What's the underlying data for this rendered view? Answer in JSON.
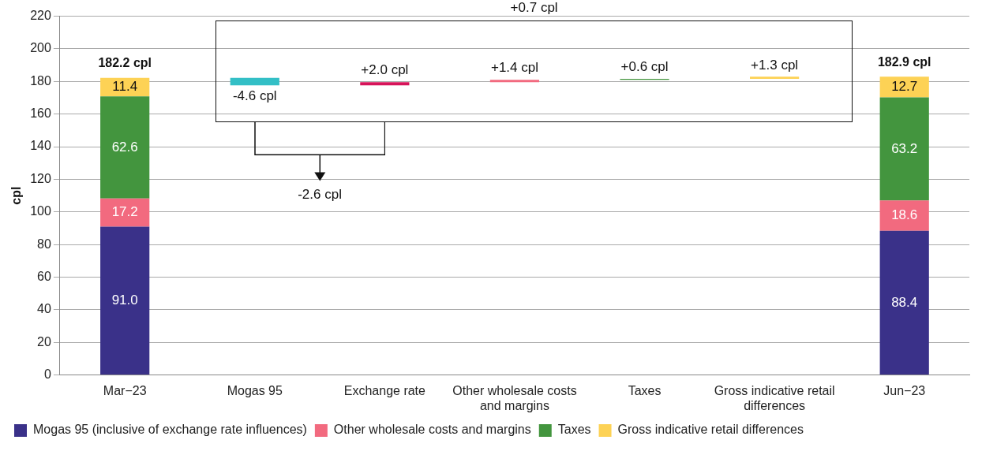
{
  "chart_data": {
    "type": "bar",
    "stacked": true,
    "ylabel": "cpl",
    "categories": [
      "Mar−23",
      "Mogas 95",
      "Exchange rate",
      "Other wholesale costs and margins",
      "Taxes",
      "Gross indicative retail differences",
      "Jun−23"
    ],
    "ylim": [
      0,
      220
    ],
    "yticks": [
      0,
      20,
      40,
      60,
      80,
      100,
      120,
      140,
      160,
      180,
      200,
      220
    ],
    "grid": "y",
    "legend": "bottom",
    "series": [
      {
        "name": "Mogas 95 (inclusive of exchange rate influences)",
        "color": "#3a3189",
        "values": [
          91.0,
          null,
          null,
          null,
          null,
          null,
          88.4
        ],
        "value_labels": [
          "91.0",
          null,
          null,
          null,
          null,
          null,
          "88.4"
        ]
      },
      {
        "name": "Other wholesale costs and margins",
        "color": "#f26a7f",
        "values": [
          17.2,
          null,
          null,
          null,
          null,
          null,
          18.6
        ],
        "value_labels": [
          "17.2",
          null,
          null,
          null,
          null,
          null,
          "18.6"
        ]
      },
      {
        "name": "Taxes",
        "color": "#43953e",
        "values": [
          62.6,
          null,
          null,
          null,
          null,
          null,
          63.2
        ],
        "value_labels": [
          "62.6",
          null,
          null,
          null,
          null,
          null,
          "63.2"
        ]
      },
      {
        "name": "Gross indicative retail differences",
        "color": "#fdd255",
        "values": [
          11.4,
          null,
          null,
          null,
          null,
          null,
          12.7
        ],
        "value_labels": [
          "11.4",
          null,
          null,
          null,
          null,
          null,
          "12.7"
        ]
      },
      {
        "type": "bar",
        "colors": [
          null,
          "#33bfc6",
          "#d6145a",
          "#f26a7f",
          "#43953e",
          "#fdd255",
          null
        ],
        "base": [
          null,
          182.2,
          177.6,
          179.6,
          181.0,
          181.6,
          null
        ],
        "values": [
          null,
          -4.6,
          2.0,
          1.4,
          0.6,
          1.3,
          null
        ],
        "value_labels": [
          null,
          "-4.6 cpl",
          "+2.0 cpl",
          "+1.4 cpl",
          "+0.6 cpl",
          "+1.3 cpl",
          null
        ]
      }
    ],
    "totals": [
      "182.2 cpl",
      null,
      null,
      null,
      null,
      null,
      "182.9 cpl"
    ],
    "annotations": [
      "+0.7 cpl",
      "-2.6 cpl"
    ]
  }
}
